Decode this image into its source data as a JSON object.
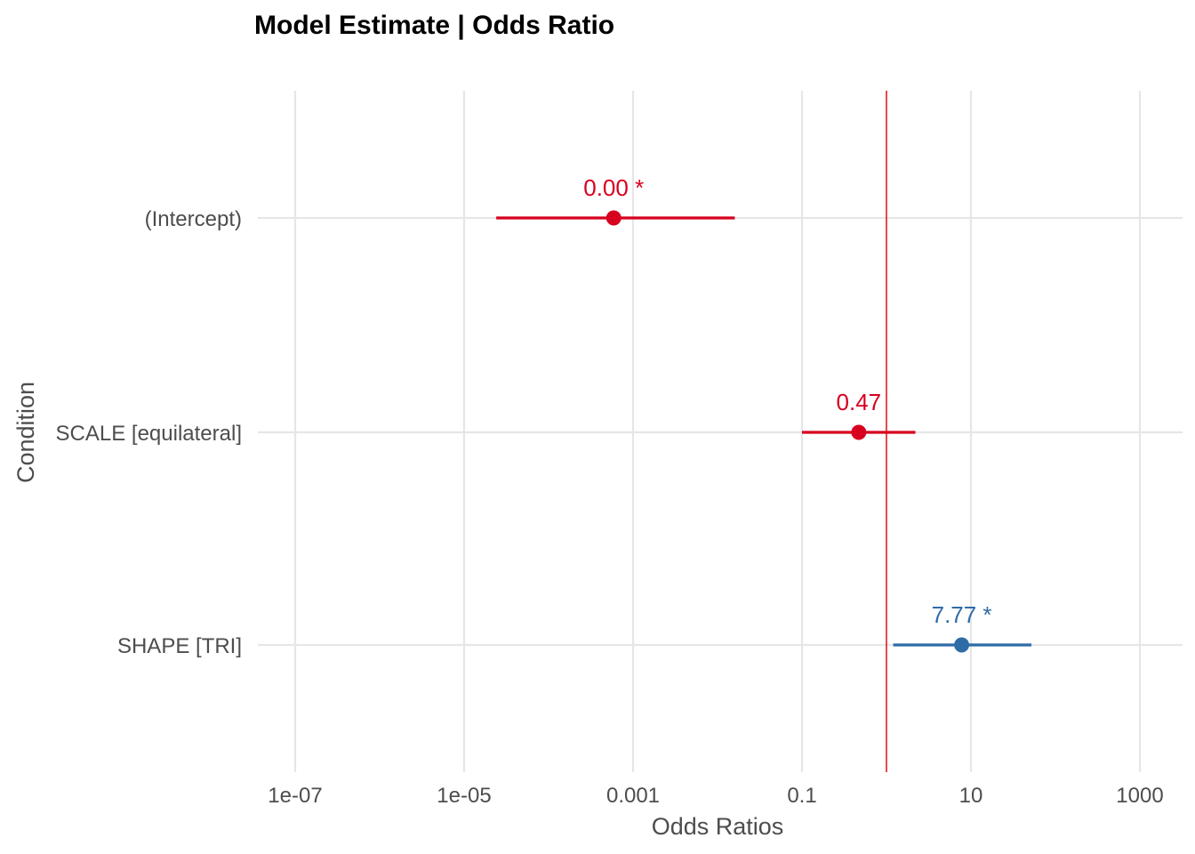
{
  "chart_data": {
    "type": "scatter",
    "title": "Model Estimate | Odds Ratio",
    "xlabel": "Odds Ratios",
    "ylabel": "Condition",
    "x_scale": "log10",
    "x_ticks": [
      1e-07,
      1e-05,
      0.001,
      0.1,
      10,
      1000
    ],
    "x_tick_labels": [
      "1e-07",
      "1e-05",
      "0.001",
      "0.1",
      "10",
      "1000"
    ],
    "reference_line": {
      "x": 1,
      "color": "#e41a1c"
    },
    "grid": true,
    "colors": {
      "negative": "#d7001f",
      "positive": "#2e6ca8",
      "grid": "#e6e6e6"
    },
    "terms": [
      {
        "label": "(Intercept)",
        "estimate": 0.00059,
        "ci_low": 2.4e-05,
        "ci_high": 0.016,
        "data_label": "0.00 *",
        "direction": "negative"
      },
      {
        "label": "SCALE [equilateral]",
        "estimate": 0.47,
        "ci_low": 0.1,
        "ci_high": 2.2,
        "data_label": "0.47",
        "direction": "negative"
      },
      {
        "label": "SHAPE [TRI]",
        "estimate": 7.77,
        "ci_low": 1.2,
        "ci_high": 52,
        "data_label": "7.77 *",
        "direction": "positive"
      }
    ]
  }
}
